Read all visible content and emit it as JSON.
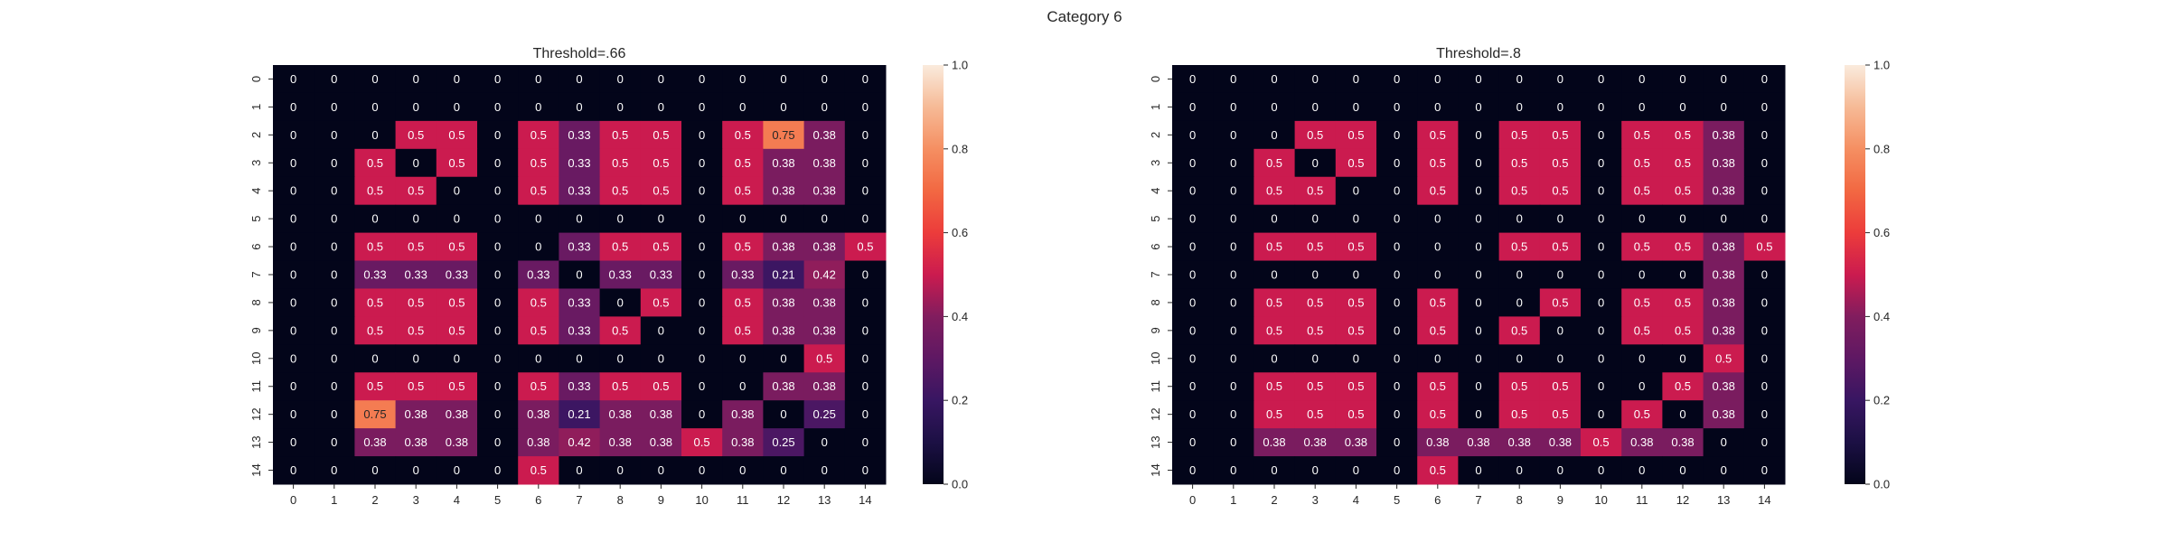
{
  "figure": {
    "suptitle": "Category 6"
  },
  "chart_data": [
    {
      "type": "heatmap",
      "title": "Threshold=.66",
      "xlabel": "",
      "ylabel": "",
      "x_ticks": [
        "0",
        "1",
        "2",
        "3",
        "4",
        "5",
        "6",
        "7",
        "8",
        "9",
        "10",
        "11",
        "12",
        "13",
        "14"
      ],
      "y_ticks": [
        "0",
        "1",
        "2",
        "3",
        "4",
        "5",
        "6",
        "7",
        "8",
        "9",
        "10",
        "11",
        "12",
        "13",
        "14"
      ],
      "colorbar": {
        "range": [
          0,
          1
        ],
        "ticks": [
          "0.0",
          "0.2",
          "0.4",
          "0.6",
          "0.8",
          "1.0"
        ]
      },
      "grid": false,
      "values": [
        [
          0,
          0,
          0,
          0,
          0,
          0,
          0,
          0,
          0,
          0,
          0,
          0,
          0,
          0,
          0
        ],
        [
          0,
          0,
          0,
          0,
          0,
          0,
          0,
          0,
          0,
          0,
          0,
          0,
          0,
          0,
          0
        ],
        [
          0,
          0,
          0,
          0.5,
          0.5,
          0,
          0.5,
          0.33,
          0.5,
          0.5,
          0,
          0.5,
          0.75,
          0.38,
          0
        ],
        [
          0,
          0,
          0.5,
          0,
          0.5,
          0,
          0.5,
          0.33,
          0.5,
          0.5,
          0,
          0.5,
          0.38,
          0.38,
          0
        ],
        [
          0,
          0,
          0.5,
          0.5,
          0,
          0,
          0.5,
          0.33,
          0.5,
          0.5,
          0,
          0.5,
          0.38,
          0.38,
          0
        ],
        [
          0,
          0,
          0,
          0,
          0,
          0,
          0,
          0,
          0,
          0,
          0,
          0,
          0,
          0,
          0
        ],
        [
          0,
          0,
          0.5,
          0.5,
          0.5,
          0,
          0,
          0.33,
          0.5,
          0.5,
          0,
          0.5,
          0.38,
          0.38,
          0.5
        ],
        [
          0,
          0,
          0.33,
          0.33,
          0.33,
          0,
          0.33,
          0,
          0.33,
          0.33,
          0,
          0.33,
          0.21,
          0.42,
          0
        ],
        [
          0,
          0,
          0.5,
          0.5,
          0.5,
          0,
          0.5,
          0.33,
          0,
          0.5,
          0,
          0.5,
          0.38,
          0.38,
          0
        ],
        [
          0,
          0,
          0.5,
          0.5,
          0.5,
          0,
          0.5,
          0.33,
          0.5,
          0,
          0,
          0.5,
          0.38,
          0.38,
          0
        ],
        [
          0,
          0,
          0,
          0,
          0,
          0,
          0,
          0,
          0,
          0,
          0,
          0,
          0,
          0.5,
          0
        ],
        [
          0,
          0,
          0.5,
          0.5,
          0.5,
          0,
          0.5,
          0.33,
          0.5,
          0.5,
          0,
          0,
          0.38,
          0.38,
          0
        ],
        [
          0,
          0,
          0.75,
          0.38,
          0.38,
          0,
          0.38,
          0.21,
          0.38,
          0.38,
          0,
          0.38,
          0,
          0.25,
          0
        ],
        [
          0,
          0,
          0.38,
          0.38,
          0.38,
          0,
          0.38,
          0.42,
          0.38,
          0.38,
          0.5,
          0.38,
          0.25,
          0,
          0
        ],
        [
          0,
          0,
          0,
          0,
          0,
          0,
          0.5,
          0,
          0,
          0,
          0,
          0,
          0,
          0,
          0
        ]
      ]
    },
    {
      "type": "heatmap",
      "title": "Threshold=.8",
      "xlabel": "",
      "ylabel": "",
      "x_ticks": [
        "0",
        "1",
        "2",
        "3",
        "4",
        "5",
        "6",
        "7",
        "8",
        "9",
        "10",
        "11",
        "12",
        "13",
        "14"
      ],
      "y_ticks": [
        "0",
        "1",
        "2",
        "3",
        "4",
        "5",
        "6",
        "7",
        "8",
        "9",
        "10",
        "11",
        "12",
        "13",
        "14"
      ],
      "colorbar": {
        "range": [
          0,
          1
        ],
        "ticks": [
          "0.0",
          "0.2",
          "0.4",
          "0.6",
          "0.8",
          "1.0"
        ]
      },
      "grid": false,
      "values": [
        [
          0,
          0,
          0,
          0,
          0,
          0,
          0,
          0,
          0,
          0,
          0,
          0,
          0,
          0,
          0
        ],
        [
          0,
          0,
          0,
          0,
          0,
          0,
          0,
          0,
          0,
          0,
          0,
          0,
          0,
          0,
          0
        ],
        [
          0,
          0,
          0,
          0.5,
          0.5,
          0,
          0.5,
          0,
          0.5,
          0.5,
          0,
          0.5,
          0.5,
          0.38,
          0
        ],
        [
          0,
          0,
          0.5,
          0,
          0.5,
          0,
          0.5,
          0,
          0.5,
          0.5,
          0,
          0.5,
          0.5,
          0.38,
          0
        ],
        [
          0,
          0,
          0.5,
          0.5,
          0,
          0,
          0.5,
          0,
          0.5,
          0.5,
          0,
          0.5,
          0.5,
          0.38,
          0
        ],
        [
          0,
          0,
          0,
          0,
          0,
          0,
          0,
          0,
          0,
          0,
          0,
          0,
          0,
          0,
          0
        ],
        [
          0,
          0,
          0.5,
          0.5,
          0.5,
          0,
          0,
          0,
          0.5,
          0.5,
          0,
          0.5,
          0.5,
          0.38,
          0.5
        ],
        [
          0,
          0,
          0,
          0,
          0,
          0,
          0,
          0,
          0,
          0,
          0,
          0,
          0,
          0.38,
          0
        ],
        [
          0,
          0,
          0.5,
          0.5,
          0.5,
          0,
          0.5,
          0,
          0,
          0.5,
          0,
          0.5,
          0.5,
          0.38,
          0
        ],
        [
          0,
          0,
          0.5,
          0.5,
          0.5,
          0,
          0.5,
          0,
          0.5,
          0,
          0,
          0.5,
          0.5,
          0.38,
          0
        ],
        [
          0,
          0,
          0,
          0,
          0,
          0,
          0,
          0,
          0,
          0,
          0,
          0,
          0,
          0.5,
          0
        ],
        [
          0,
          0,
          0.5,
          0.5,
          0.5,
          0,
          0.5,
          0,
          0.5,
          0.5,
          0,
          0,
          0.5,
          0.38,
          0
        ],
        [
          0,
          0,
          0.5,
          0.5,
          0.5,
          0,
          0.5,
          0,
          0.5,
          0.5,
          0,
          0.5,
          0,
          0.38,
          0
        ],
        [
          0,
          0,
          0.38,
          0.38,
          0.38,
          0,
          0.38,
          0.38,
          0.38,
          0.38,
          0.5,
          0.38,
          0.38,
          0,
          0
        ],
        [
          0,
          0,
          0,
          0,
          0,
          0,
          0.5,
          0,
          0,
          0,
          0,
          0,
          0,
          0,
          0
        ]
      ]
    }
  ]
}
